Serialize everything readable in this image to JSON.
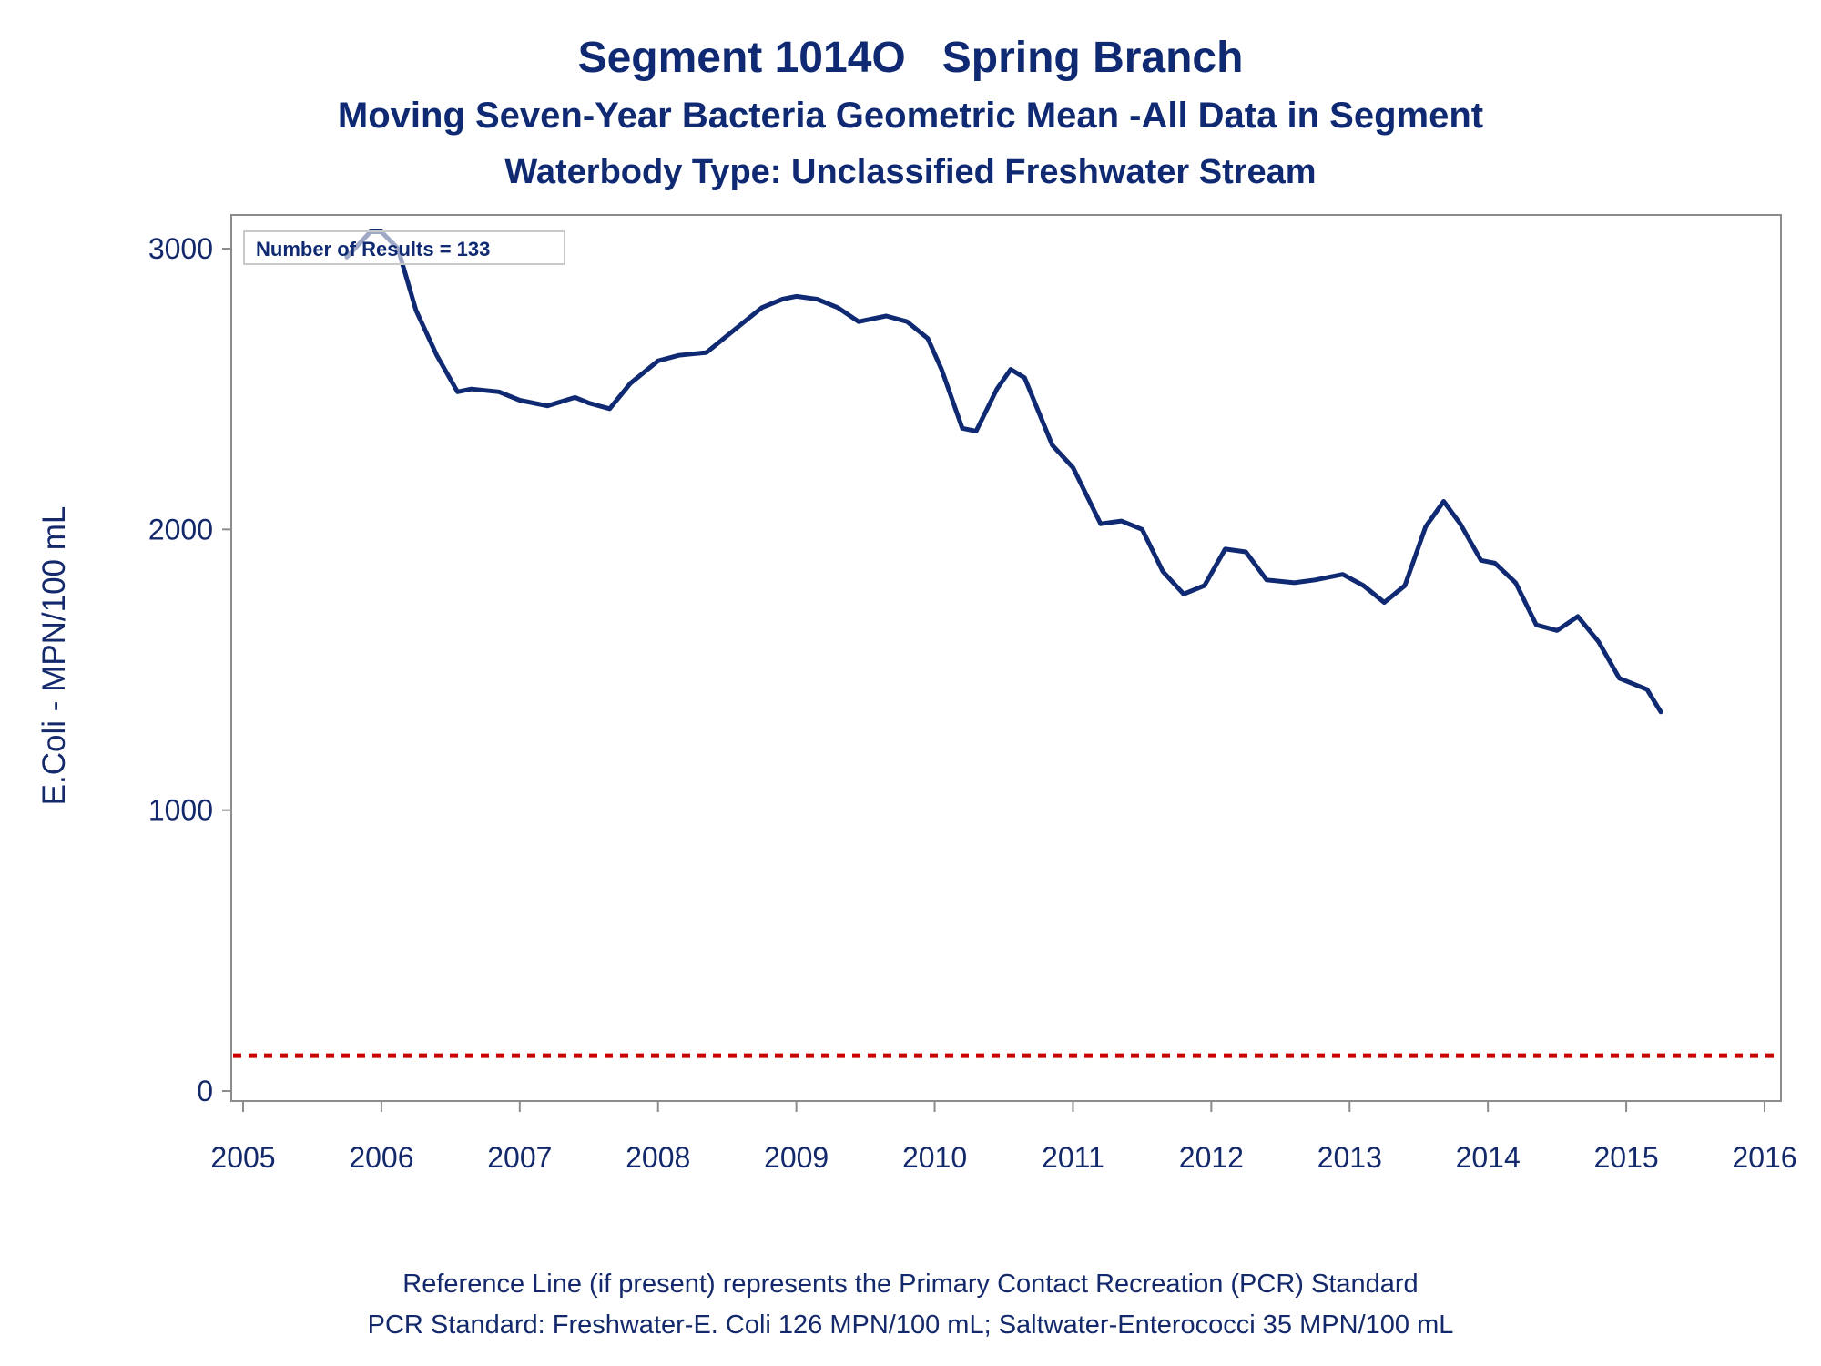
{
  "titles": {
    "line1": "Segment 1014O   Spring Branch",
    "line2": "Moving Seven-Year Bacteria Geometric Mean -All Data in Segment",
    "line3": "Waterbody Type: Unclassified Freshwater Stream"
  },
  "footnotes": {
    "line1": "Reference Line (if present) represents the Primary Contact Recreation (PCR) Standard",
    "line2": "PCR Standard: Freshwater-E. Coli 126 MPN/100 mL; Saltwater-Enterococci 35 MPN/100 mL"
  },
  "colors": {
    "series": "#0f2a72",
    "reference": "#cc0000",
    "axis": "#8c8c8c",
    "text": "#13296b"
  },
  "chart_data": {
    "type": "line",
    "title": "Segment 1014O   Spring Branch",
    "subtitle": "Moving Seven-Year Bacteria Geometric Mean -All Data in Segment",
    "xlabel": "",
    "ylabel": "E.Coli - MPN/100 mL",
    "xlim": [
      2005,
      2016
    ],
    "ylim": [
      -30,
      3130
    ],
    "xticks": [
      "2005",
      "2006",
      "2007",
      "2008",
      "2009",
      "2010",
      "2011",
      "2012",
      "2013",
      "2014",
      "2015",
      "2016"
    ],
    "yticks": [
      "0",
      "1000",
      "2000",
      "3000"
    ],
    "inset_label": "Number of Results = 133",
    "reference_line": {
      "value": 126,
      "style": "dashed"
    },
    "grid": false,
    "series": [
      {
        "x": [
          2005.75,
          2005.92,
          2006.0,
          2006.12,
          2006.25,
          2006.4,
          2006.55,
          2006.65,
          2006.85,
          2007.0,
          2007.2,
          2007.4,
          2007.5,
          2007.65,
          2007.8,
          2008.0,
          2008.15,
          2008.35,
          2008.5,
          2008.75,
          2008.9,
          2009.0,
          2009.15,
          2009.3,
          2009.45,
          2009.55,
          2009.65,
          2009.8,
          2009.95,
          2010.05,
          2010.2,
          2010.3,
          2010.45,
          2010.55,
          2010.65,
          2010.85,
          2011.0,
          2011.2,
          2011.35,
          2011.5,
          2011.65,
          2011.8,
          2011.95,
          2012.1,
          2012.25,
          2012.4,
          2012.6,
          2012.75,
          2012.95,
          2013.1,
          2013.25,
          2013.4,
          2013.55,
          2013.68,
          2013.8,
          2013.95,
          2014.05,
          2014.2,
          2014.35,
          2014.5,
          2014.65,
          2014.8,
          2014.95,
          2015.15,
          2015.25
        ],
        "y": [
          2970,
          3060,
          3060,
          3000,
          2780,
          2620,
          2490,
          2500,
          2490,
          2460,
          2440,
          2470,
          2450,
          2430,
          2520,
          2600,
          2620,
          2630,
          2690,
          2790,
          2820,
          2830,
          2820,
          2790,
          2740,
          2750,
          2760,
          2740,
          2680,
          2570,
          2360,
          2350,
          2500,
          2570,
          2540,
          2300,
          2220,
          2020,
          2030,
          2000,
          1850,
          1770,
          1800,
          1930,
          1920,
          1820,
          1810,
          1820,
          1840,
          1800,
          1740,
          1800,
          2010,
          2100,
          2020,
          1890,
          1880,
          1810,
          1660,
          1640,
          1690,
          1600,
          1470,
          1430,
          1350
        ]
      }
    ]
  }
}
